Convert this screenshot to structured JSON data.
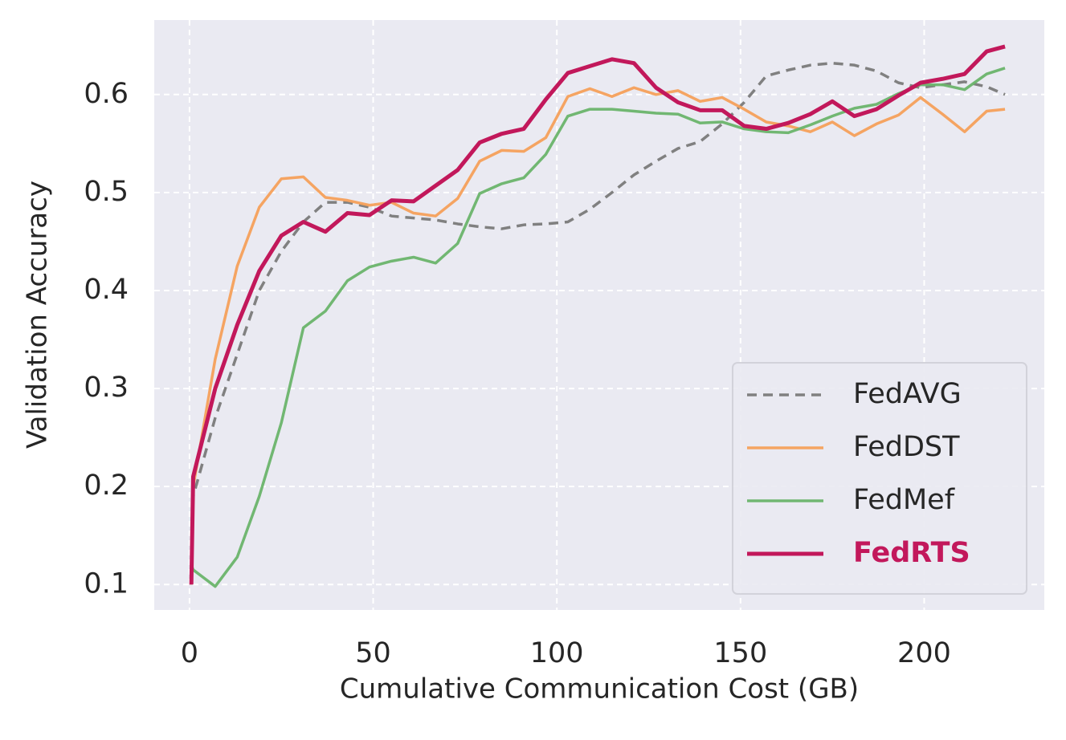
{
  "chart_data": {
    "type": "line",
    "xlabel": "Cumulative Communication Cost (GB)",
    "ylabel": "Validation Accuracy",
    "x": [
      0.5,
      1,
      7,
      13,
      19,
      25,
      31,
      37,
      43,
      49,
      55,
      61,
      67,
      73,
      79,
      85,
      91,
      97,
      103,
      109,
      115,
      121,
      127,
      133,
      139,
      145,
      151,
      157,
      163,
      169,
      175,
      181,
      187,
      193,
      199,
      205,
      211,
      217,
      222
    ],
    "series": [
      {
        "name": "FedAVG",
        "color": "#808080",
        "dashed": true,
        "values": [
          0.1,
          0.19,
          0.27,
          0.335,
          0.4,
          0.44,
          0.47,
          0.49,
          0.49,
          0.485,
          0.476,
          0.474,
          0.472,
          0.468,
          0.465,
          0.463,
          0.467,
          0.468,
          0.47,
          0.483,
          0.5,
          0.518,
          0.532,
          0.545,
          0.552,
          0.57,
          0.592,
          0.619,
          0.625,
          0.63,
          0.632,
          0.63,
          0.624,
          0.612,
          0.607,
          0.61,
          0.613,
          0.608,
          0.6
        ]
      },
      {
        "name": "FedDST",
        "color": "#f5a05a",
        "values": [
          0.1,
          0.2,
          0.33,
          0.425,
          0.485,
          0.514,
          0.516,
          0.495,
          0.492,
          0.487,
          0.49,
          0.479,
          0.476,
          0.494,
          0.532,
          0.543,
          0.542,
          0.556,
          0.598,
          0.606,
          0.598,
          0.607,
          0.6,
          0.604,
          0.593,
          0.597,
          0.585,
          0.572,
          0.568,
          0.562,
          0.572,
          0.558,
          0.57,
          0.579,
          0.597,
          0.58,
          0.562,
          0.583,
          0.585
        ]
      },
      {
        "name": "FedMef",
        "color": "#6ab46a",
        "values": [
          0.12,
          0.115,
          0.098,
          0.128,
          0.19,
          0.265,
          0.362,
          0.379,
          0.41,
          0.424,
          0.43,
          0.434,
          0.428,
          0.448,
          0.499,
          0.509,
          0.515,
          0.539,
          0.578,
          0.585,
          0.585,
          0.583,
          0.581,
          0.58,
          0.571,
          0.572,
          0.565,
          0.562,
          0.561,
          0.569,
          0.578,
          0.586,
          0.59,
          0.601,
          0.61,
          0.61,
          0.605,
          0.621,
          0.627
        ]
      },
      {
        "name": "FedRTS",
        "color": "#c2185b",
        "bold": true,
        "values": [
          0.1,
          0.21,
          0.3,
          0.365,
          0.42,
          0.456,
          0.47,
          0.46,
          0.479,
          0.477,
          0.492,
          0.491,
          0.507,
          0.523,
          0.551,
          0.56,
          0.565,
          0.595,
          0.622,
          0.629,
          0.636,
          0.632,
          0.607,
          0.592,
          0.584,
          0.584,
          0.568,
          0.565,
          0.571,
          0.58,
          0.593,
          0.578,
          0.585,
          0.599,
          0.612,
          0.616,
          0.621,
          0.644,
          0.649
        ]
      }
    ],
    "xlim": [
      -9.6,
      232.7
    ],
    "ylim": [
      0.074,
      0.676
    ],
    "xticks": [
      0,
      50,
      100,
      150,
      200
    ],
    "yticks": [
      0.1,
      0.2,
      0.3,
      0.4,
      0.5,
      0.6
    ],
    "grid": true,
    "legend": "lower right"
  }
}
